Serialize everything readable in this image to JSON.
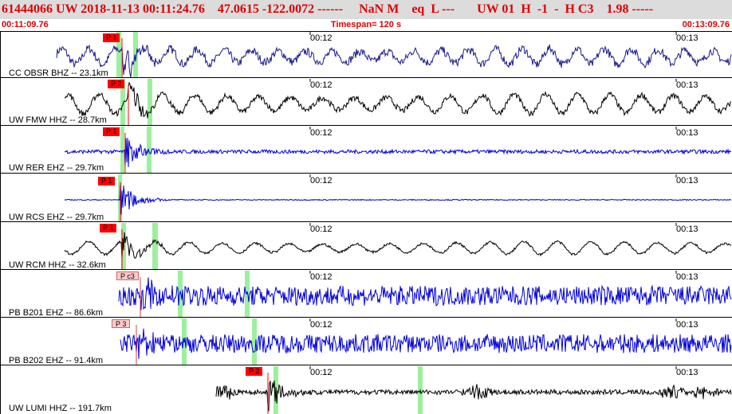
{
  "header": {
    "event_id": "61444066",
    "network": "UW",
    "datetime": "2018-11-13 00:11:24.76",
    "location": "47.0615 -122.0072",
    "dashes": "------",
    "magnitude": "NaN M",
    "event_type": "eq",
    "flag": "L ---",
    "quality": "UW 01  H  -1  -  H C3",
    "value": "1.98",
    "trailing": "-----"
  },
  "timebar": {
    "start": "00:11:09.76",
    "span": "Timespan= 120 s",
    "end": "00:13:09.76"
  },
  "panels": [
    {
      "label": "CC OBSR BHZ -- 23.1km",
      "pick": "P 1",
      "tick1": "00:12",
      "tick2": "00:13",
      "color": "#1a1a8c",
      "pick_style": "red",
      "noise": 0.18,
      "amp": 0.28,
      "period": 34,
      "dominant": "wave"
    },
    {
      "label": "UW FMW HHZ -- 28.7km",
      "pick": "P 2",
      "tick1": "00:12",
      "tick2": "00:13",
      "color": "#000000",
      "pick_style": "red",
      "noise": 0.12,
      "amp": 0.34,
      "period": 40,
      "dominant": "wave"
    },
    {
      "label": "UW RER EHZ -- 29.7km",
      "pick": "P 1",
      "tick1": "00:12",
      "tick2": "00:13",
      "color": "#0000dd",
      "pick_style": "red",
      "noise": 0.08,
      "amp": 0.01,
      "period": 30,
      "dominant": "noise"
    },
    {
      "label": "UW RCS EHZ -- 29.7km",
      "pick": "P 1",
      "tick1": "00:12",
      "tick2": "00:13",
      "color": "#0000dd",
      "pick_style": "red",
      "noise": 0.02,
      "amp": 0.0,
      "period": 30,
      "dominant": "flat"
    },
    {
      "label": "UW RCM HHZ -- 32.6km",
      "pick": "P 1",
      "tick1": "00:12",
      "tick2": "00:13",
      "color": "#000000",
      "pick_style": "red",
      "noise": 0.05,
      "amp": 0.22,
      "period": 42,
      "dominant": "wave"
    },
    {
      "label": "PB B201 EHZ -- 86.6km",
      "pick": "P c3",
      "tick1": "00:12",
      "tick2": "00:13",
      "color": "#0000dd",
      "pick_style": "pink",
      "noise": 0.42,
      "amp": 0.0,
      "period": 30,
      "dominant": "noise"
    },
    {
      "label": "PB B202 EHZ -- 91.4km",
      "pick": "P 3",
      "tick1": "00:12",
      "tick2": "00:13",
      "color": "#0000dd",
      "pick_style": "pink",
      "noise": 0.4,
      "amp": 0.0,
      "period": 30,
      "dominant": "noise"
    },
    {
      "label": "UW LUMI HHZ -- 191.7km",
      "pick": "P 2",
      "tick1": "00:12",
      "tick2": "00:13",
      "color": "#000000",
      "pick_style": "red",
      "noise": 0.1,
      "amp": 0.0,
      "period": 30,
      "dominant": "bursty"
    }
  ],
  "colors": {
    "header_bg": "#dcdcdc",
    "header_text": "#e00000",
    "pick_red": "#ff0000",
    "pick_pink": "#ffcccc",
    "window_green": "#9cf09c"
  }
}
